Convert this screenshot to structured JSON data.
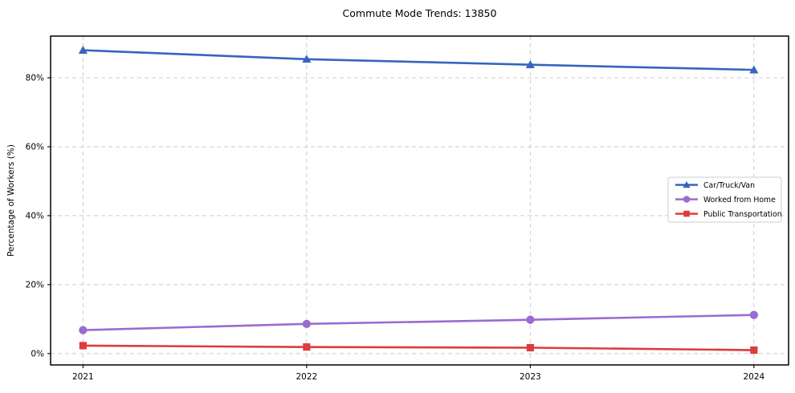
{
  "figure": {
    "background": "#ffffff",
    "frame_color": "#000000",
    "grid_color": "#cccccc",
    "text_color": "#000000"
  },
  "chart_data": {
    "type": "line",
    "title": "Commute Mode Trends: 13850",
    "xlabel": "",
    "ylabel": "Percentage of Workers (%)",
    "x": [
      2021,
      2022,
      2023,
      2024
    ],
    "x_tick_labels": [
      "2021",
      "2022",
      "2023",
      "2024"
    ],
    "y_ticks": [
      0,
      20,
      40,
      60,
      80
    ],
    "y_tick_labels": [
      "0%",
      "20%",
      "40%",
      "60%",
      "80%"
    ],
    "xlim": [
      2020.855,
      2024.155
    ],
    "ylim": [
      -3.3,
      92.1
    ],
    "grid": true,
    "grid_style": "dashed",
    "legend": {
      "visible": true,
      "position": "center-right"
    },
    "series": [
      {
        "name": "Car/Truck/Van",
        "color": "#3565c0",
        "marker": "triangle",
        "values": [
          88.0,
          85.4,
          83.8,
          82.3
        ]
      },
      {
        "name": "Worked from Home",
        "color": "#9a6bd0",
        "marker": "circle",
        "values": [
          6.8,
          8.6,
          9.8,
          11.2
        ]
      },
      {
        "name": "Public Transportation",
        "color": "#dd3c3c",
        "marker": "square",
        "values": [
          2.3,
          1.9,
          1.7,
          1.0
        ]
      }
    ]
  }
}
